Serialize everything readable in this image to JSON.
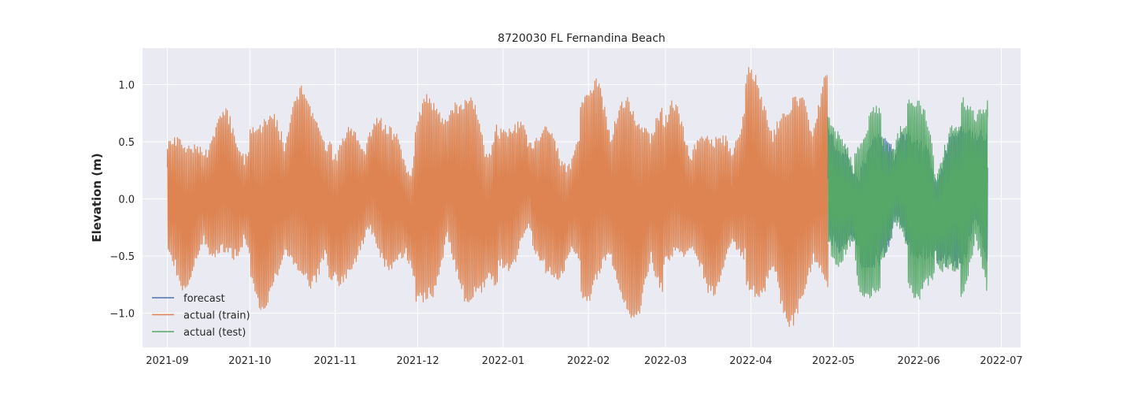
{
  "chart_data": {
    "type": "line",
    "title": "8720030 FL Fernandina Beach",
    "xlabel": "",
    "ylabel": "Elevation (m)",
    "x_range": [
      "2021-08-23",
      "2022-07-08"
    ],
    "ylim": [
      -1.3,
      1.32
    ],
    "x_ticks": [
      "2021-09",
      "2021-10",
      "2021-11",
      "2021-12",
      "2022-01",
      "2022-02",
      "2022-03",
      "2022-04",
      "2022-05",
      "2022-06",
      "2022-07"
    ],
    "y_ticks": [
      -1.0,
      -0.5,
      0.0,
      0.5,
      1.0
    ],
    "y_tick_labels": [
      "−1.0",
      "−0.5",
      "0.0",
      "0.5",
      "1.0"
    ],
    "grid": true,
    "legend_position": "lower-left",
    "series": [
      {
        "name": "forecast",
        "color": "#4c72b0",
        "start": "2022-04-29",
        "end": "2022-06-26",
        "tidal_amplitude": [
          0.45,
          0.55,
          0.5,
          0.55,
          0.6
        ],
        "approx_range": [
          -0.6,
          1.1
        ]
      },
      {
        "name": "actual (train)",
        "color": "#dd8452",
        "start": "2021-09-01",
        "end": "2022-04-29",
        "approx_range": [
          -1.18,
          1.22
        ],
        "tidal_amplitude": [
          0.6,
          0.8,
          0.6,
          0.85,
          0.6,
          0.9,
          0.65,
          0.95
        ]
      },
      {
        "name": "actual (test)",
        "color": "#55a868",
        "start": "2022-04-29",
        "end": "2022-06-26",
        "approx_range": [
          -1.1,
          1.06
        ],
        "tidal_amplitude": [
          0.55,
          0.8,
          0.55,
          0.85,
          0.6,
          0.9
        ]
      }
    ]
  }
}
